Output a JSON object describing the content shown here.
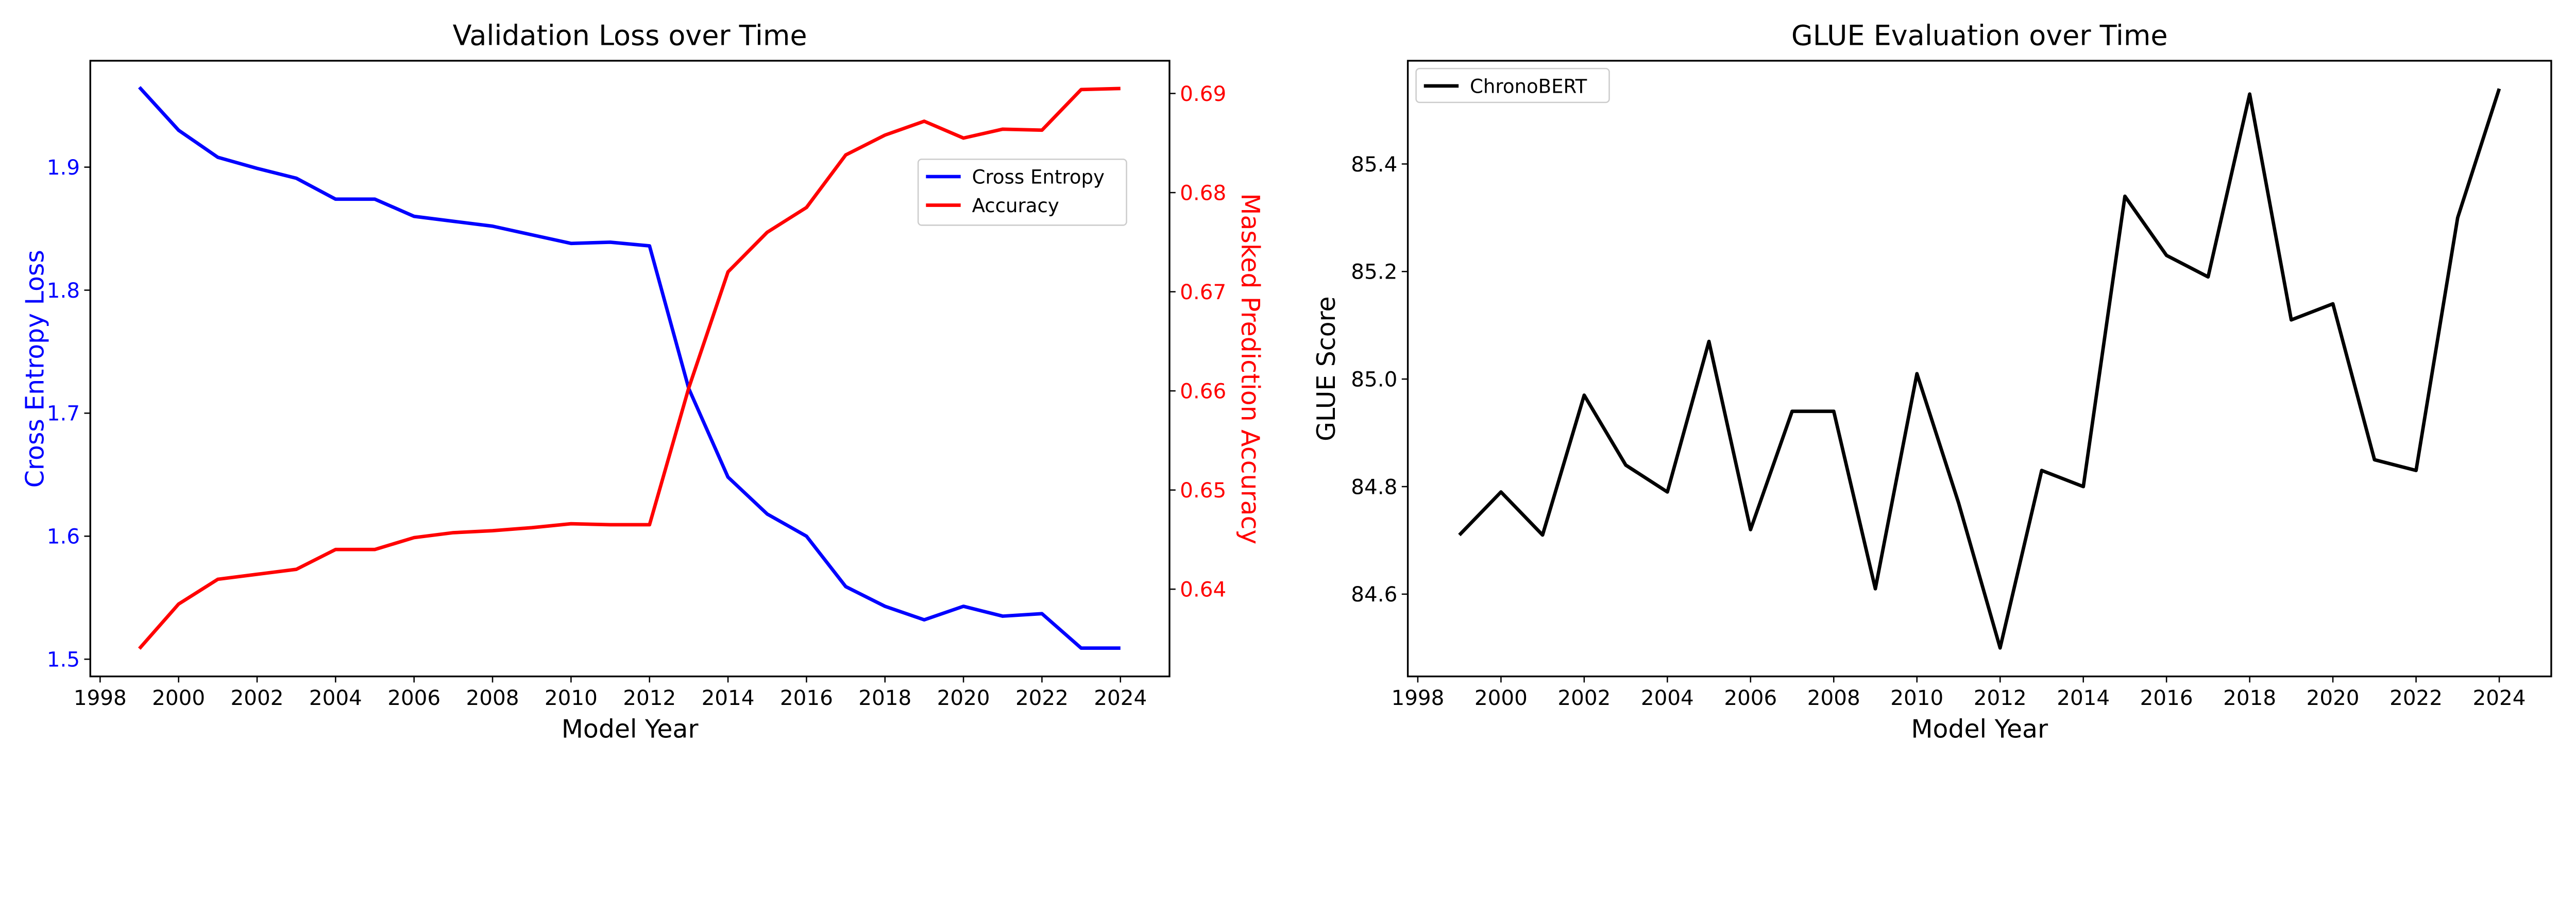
{
  "chart_data": [
    {
      "type": "line",
      "title": "Validation Loss over Time",
      "xlabel": "Model Year",
      "ylabel": "Cross Entropy Loss",
      "y2label": "Masked Prediction Accuracy",
      "xlim": [
        1997.75,
        2025.25
      ],
      "ylim": [
        1.486,
        1.9865
      ],
      "y2lim": [
        0.6312,
        0.6933
      ],
      "xticks": [
        1998,
        2000,
        2002,
        2004,
        2006,
        2008,
        2010,
        2012,
        2014,
        2016,
        2018,
        2020,
        2022,
        2024
      ],
      "yticks": [
        "1.5",
        "1.6",
        "1.7",
        "1.8",
        "1.9"
      ],
      "y2ticks": [
        "0.64",
        "0.65",
        "0.66",
        "0.67",
        "0.68",
        "0.69"
      ],
      "grid": false,
      "legend": "upper-right",
      "x": [
        1999,
        2000,
        2001,
        2002,
        2003,
        2004,
        2005,
        2006,
        2007,
        2008,
        2009,
        2010,
        2011,
        2012,
        2013,
        2014,
        2015,
        2016,
        2017,
        2018,
        2019,
        2020,
        2021,
        2022,
        2023,
        2024
      ],
      "series": [
        {
          "name": "Cross Entropy",
          "axis": "left",
          "color": "#0000ff",
          "values": [
            1.965,
            1.93,
            1.908,
            1.899,
            1.891,
            1.874,
            1.874,
            1.86,
            1.856,
            1.852,
            1.845,
            1.838,
            1.839,
            1.836,
            1.72,
            1.648,
            1.618,
            1.6,
            1.559,
            1.543,
            1.532,
            1.543,
            1.535,
            1.537,
            1.509,
            1.509
          ]
        },
        {
          "name": "Accuracy",
          "axis": "right",
          "color": "#ff0000",
          "values": [
            0.634,
            0.6385,
            0.641,
            0.6415,
            0.642,
            0.644,
            0.644,
            0.6452,
            0.6457,
            0.6459,
            0.6462,
            0.6466,
            0.6465,
            0.6465,
            0.6603,
            0.672,
            0.676,
            0.6785,
            0.6838,
            0.6858,
            0.6872,
            0.6855,
            0.6864,
            0.6863,
            0.6904,
            0.6905
          ]
        }
      ]
    },
    {
      "type": "line",
      "title": "GLUE Evaluation over Time",
      "xlabel": "Model Year",
      "ylabel": "GLUE Score",
      "xlim": [
        1997.76,
        2025.25
      ],
      "ylim": [
        84.447,
        85.592
      ],
      "xticks": [
        1998,
        2000,
        2002,
        2004,
        2006,
        2008,
        2010,
        2012,
        2014,
        2016,
        2018,
        2020,
        2022,
        2024
      ],
      "yticks": [
        "84.6",
        "84.8",
        "85.0",
        "85.2",
        "85.4"
      ],
      "grid": false,
      "legend": "upper-left",
      "x": [
        1999,
        2000,
        2001,
        2002,
        2003,
        2004,
        2005,
        2006,
        2007,
        2008,
        2009,
        2010,
        2011,
        2012,
        2013,
        2014,
        2015,
        2016,
        2017,
        2018,
        2019,
        2020,
        2021,
        2022,
        2023,
        2024
      ],
      "series": [
        {
          "name": "ChronoBERT",
          "axis": "left",
          "color": "#000000",
          "values": [
            84.71,
            84.79,
            84.71,
            84.97,
            84.84,
            84.79,
            85.07,
            84.72,
            84.94,
            84.94,
            84.61,
            85.01,
            84.77,
            84.5,
            84.83,
            84.8,
            85.34,
            85.23,
            85.19,
            85.53,
            85.11,
            85.14,
            84.85,
            84.83,
            85.3,
            85.54
          ]
        }
      ]
    }
  ]
}
